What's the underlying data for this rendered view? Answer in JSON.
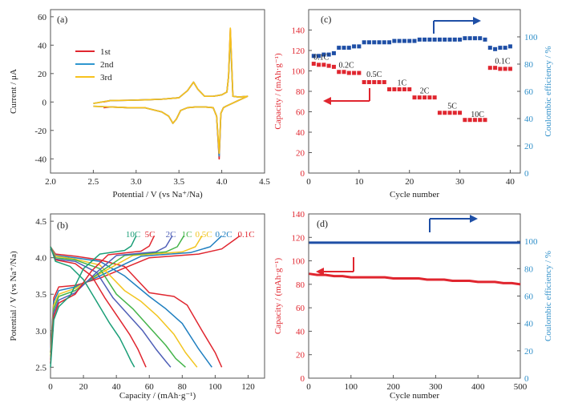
{
  "chart_data": [
    {
      "panel": "(a)",
      "type": "line",
      "xlabel": "Potential / V (vs Na⁺/Na)",
      "ylabel": "Current / μA",
      "xlim": [
        2.0,
        4.5
      ],
      "ylim": [
        -50,
        65
      ],
      "xticks": [
        2.0,
        2.5,
        3.0,
        3.5,
        4.0,
        4.5
      ],
      "yticks": [
        -40,
        -20,
        0,
        20,
        40,
        60
      ],
      "legend_position": "upper-left",
      "colors": {
        "1st": "#e0262f",
        "2nd": "#2f97cf",
        "3rd": "#f7c21d"
      },
      "series": [
        {
          "name": "1st",
          "x": [
            2.62,
            2.7,
            2.9,
            3.1,
            3.3,
            3.38,
            3.43,
            3.47,
            3.52,
            3.6,
            3.7,
            3.8,
            3.9,
            3.94,
            3.97,
            3.99,
            4.02,
            4.05,
            4.3,
            4.2,
            4.13,
            4.1,
            4.08,
            4.06,
            4.0,
            3.9,
            3.8,
            3.72,
            3.67,
            3.6,
            3.5,
            3.3,
            3.1,
            2.9,
            2.7,
            2.62
          ],
          "y": [
            -4,
            -3.5,
            -4,
            -4,
            -7,
            -10,
            -15,
            -12,
            -6,
            -4,
            -3.5,
            -3.5,
            -4,
            -10,
            -40,
            -8,
            -4,
            -3,
            4,
            3.5,
            4,
            51,
            18,
            7,
            5,
            4,
            4,
            9,
            14,
            8,
            3,
            2,
            1.5,
            1.2,
            1,
            0
          ]
        },
        {
          "name": "2nd",
          "x": [
            2.5,
            2.7,
            2.9,
            3.1,
            3.3,
            3.38,
            3.43,
            3.47,
            3.52,
            3.6,
            3.7,
            3.8,
            3.9,
            3.94,
            3.97,
            3.99,
            4.02,
            4.05,
            4.3,
            4.2,
            4.13,
            4.1,
            4.08,
            4.06,
            4.0,
            3.9,
            3.8,
            3.72,
            3.67,
            3.6,
            3.5,
            3.3,
            3.1,
            2.9,
            2.7,
            2.5
          ],
          "y": [
            -3,
            -3.5,
            -4,
            -4,
            -7,
            -10,
            -15,
            -12,
            -6,
            -4,
            -3.5,
            -3.5,
            -4,
            -10,
            -38,
            -8,
            -4,
            -3,
            4,
            3.5,
            4,
            48,
            18,
            7,
            5,
            4,
            4,
            9,
            14,
            8,
            3,
            2,
            1.5,
            1.2,
            1,
            -1
          ]
        },
        {
          "name": "3rd",
          "x": [
            2.5,
            2.7,
            2.9,
            3.1,
            3.3,
            3.38,
            3.43,
            3.47,
            3.52,
            3.6,
            3.7,
            3.8,
            3.9,
            3.94,
            3.97,
            3.99,
            4.02,
            4.05,
            4.3,
            4.2,
            4.13,
            4.1,
            4.08,
            4.06,
            4.0,
            3.9,
            3.8,
            3.72,
            3.67,
            3.6,
            3.5,
            3.3,
            3.1,
            2.9,
            2.7,
            2.5
          ],
          "y": [
            -3,
            -3.5,
            -4,
            -4,
            -7,
            -10,
            -15,
            -12,
            -6,
            -4,
            -3.5,
            -3.5,
            -4,
            -10,
            -36,
            -8,
            -4,
            -3,
            4,
            3.5,
            4,
            52,
            18,
            7,
            5,
            4,
            4,
            9,
            14,
            8,
            3,
            2,
            1.5,
            1.2,
            1,
            -1
          ]
        }
      ]
    },
    {
      "panel": "(b)",
      "type": "line",
      "xlabel": "Capacity / (mAh·g⁻¹)",
      "ylabel": "Potential / V (vs Na⁺/Na)",
      "xlim": [
        0,
        130
      ],
      "ylim": [
        2.35,
        4.6
      ],
      "xticks": [
        0,
        20,
        40,
        60,
        80,
        100,
        120
      ],
      "yticks": [
        2.5,
        3.0,
        3.5,
        4.0,
        4.5
      ],
      "labels": [
        "10C",
        "5C",
        "2C",
        "1C",
        "0.5C",
        "0.2C",
        "0.1C"
      ],
      "colors": {
        "10C": "#1a9e77",
        "5C": "#e0262f",
        "2C": "#4f5fb7",
        "1C": "#44b44a",
        "0.5C": "#f2c520",
        "0.2C": "#1f7fc0",
        "0.1C": "#e0262f"
      },
      "series": [
        {
          "name": "0.1C",
          "charge": {
            "x": [
              0,
              2,
              5,
              15,
              30,
              60,
              90,
              104,
              112,
              115
            ],
            "y": [
              2.7,
              3.45,
              3.6,
              3.62,
              3.72,
              4.0,
              4.05,
              4.12,
              4.25,
              4.3
            ]
          },
          "discharge": {
            "x": [
              0,
              3,
              15,
              30,
              45,
              60,
              75,
              83,
              92,
              100,
              104
            ],
            "y": [
              4.15,
              4.05,
              4.02,
              3.97,
              3.88,
              3.52,
              3.47,
              3.35,
              3.0,
              2.7,
              2.5
            ]
          }
        },
        {
          "name": "0.2C",
          "charge": {
            "x": [
              0,
              2,
              5,
              15,
              30,
              55,
              85,
              97,
              104
            ],
            "y": [
              2.7,
              3.4,
              3.55,
              3.6,
              3.75,
              4.02,
              4.07,
              4.15,
              4.3
            ]
          },
          "discharge": {
            "x": [
              0,
              3,
              15,
              30,
              45,
              60,
              70,
              80,
              90,
              98
            ],
            "y": [
              4.15,
              4.03,
              4.0,
              3.95,
              3.75,
              3.47,
              3.3,
              3.1,
              2.75,
              2.5
            ]
          }
        },
        {
          "name": "0.5C",
          "charge": {
            "x": [
              0,
              2,
              5,
              15,
              30,
              50,
              80,
              88,
              92
            ],
            "y": [
              2.65,
              3.35,
              3.5,
              3.58,
              3.78,
              4.03,
              4.08,
              4.15,
              4.3
            ]
          },
          "discharge": {
            "x": [
              0,
              3,
              15,
              30,
              45,
              55,
              65,
              75,
              82,
              89
            ],
            "y": [
              4.15,
              4.02,
              3.98,
              3.9,
              3.55,
              3.4,
              3.2,
              2.95,
              2.7,
              2.5
            ]
          }
        },
        {
          "name": "1C",
          "charge": {
            "x": [
              0,
              2,
              5,
              15,
              30,
              45,
              70,
              77,
              81
            ],
            "y": [
              2.6,
              3.3,
              3.47,
              3.55,
              3.8,
              4.03,
              4.08,
              4.15,
              4.3
            ]
          },
          "discharge": {
            "x": [
              0,
              3,
              15,
              30,
              40,
              50,
              60,
              70,
              76,
              82
            ],
            "y": [
              4.15,
              4.0,
              3.97,
              3.85,
              3.5,
              3.3,
              3.05,
              2.8,
              2.62,
              2.5
            ]
          }
        },
        {
          "name": "2C",
          "charge": {
            "x": [
              0,
              2,
              5,
              15,
              28,
              40,
              64,
              70,
              74
            ],
            "y": [
              2.55,
              3.25,
              3.42,
              3.52,
              3.8,
              4.03,
              4.08,
              4.15,
              4.3
            ]
          },
          "discharge": {
            "x": [
              0,
              3,
              15,
              28,
              38,
              48,
              56,
              64,
              70,
              73
            ],
            "y": [
              4.15,
              3.98,
              3.95,
              3.8,
              3.45,
              3.2,
              3.0,
              2.75,
              2.58,
              2.5
            ]
          }
        },
        {
          "name": "5C",
          "charge": {
            "x": [
              0,
              2,
              5,
              15,
              25,
              35,
              55,
              60,
              63
            ],
            "y": [
              2.55,
              3.2,
              3.38,
              3.5,
              3.82,
              4.04,
              4.09,
              4.16,
              4.3
            ]
          },
          "discharge": {
            "x": [
              0,
              3,
              15,
              25,
              33,
              42,
              48,
              53,
              56,
              58
            ],
            "y": [
              4.15,
              3.97,
              3.92,
              3.75,
              3.45,
              3.15,
              2.95,
              2.75,
              2.6,
              2.5
            ]
          }
        },
        {
          "name": "10C",
          "charge": {
            "x": [
              0,
              2,
              5,
              12,
              20,
              30,
              45,
              49,
              52
            ],
            "y": [
              2.5,
              3.15,
              3.33,
              3.48,
              3.85,
              4.05,
              4.1,
              4.16,
              4.3
            ]
          },
          "discharge": {
            "x": [
              0,
              3,
              12,
              20,
              28,
              36,
              42,
              46,
              49,
              51
            ],
            "y": [
              4.15,
              3.95,
              3.88,
              3.7,
              3.4,
              3.1,
              2.9,
              2.72,
              2.58,
              2.5
            ]
          }
        }
      ]
    },
    {
      "panel": "(c)",
      "type": "scatter",
      "xlabel": "Cycle number",
      "ylabel_left": "Capacity / (mAh·g⁻¹)",
      "ylabel_right": "Coulombic efficiency / %",
      "xlim": [
        0,
        42
      ],
      "ylim_left": [
        0,
        160
      ],
      "ylim_right": [
        0,
        120
      ],
      "xticks": [
        0,
        10,
        20,
        30,
        40
      ],
      "yticks_left": [
        0,
        20,
        40,
        60,
        80,
        100,
        120,
        140
      ],
      "yticks_right": [
        0,
        20,
        40,
        60,
        80,
        100
      ],
      "rate_labels": [
        {
          "text": "0.1C",
          "x": 2.5,
          "y": 111
        },
        {
          "text": "0.2C",
          "x": 7.5,
          "y": 103
        },
        {
          "text": "0.5C",
          "x": 13,
          "y": 94
        },
        {
          "text": "1C",
          "x": 18.5,
          "y": 86
        },
        {
          "text": "2C",
          "x": 23,
          "y": 78
        },
        {
          "text": "5C",
          "x": 28.5,
          "y": 63
        },
        {
          "text": "10C",
          "x": 33.5,
          "y": 55
        },
        {
          "text": "0.1C",
          "x": 38.5,
          "y": 107
        }
      ],
      "capacity": {
        "color": "#e0262f",
        "x": [
          1,
          2,
          3,
          4,
          5,
          6,
          7,
          8,
          9,
          10,
          11,
          12,
          13,
          14,
          15,
          16,
          17,
          18,
          19,
          20,
          21,
          22,
          23,
          24,
          25,
          26,
          27,
          28,
          29,
          30,
          31,
          32,
          33,
          34,
          35,
          36,
          37,
          38,
          39,
          40
        ],
        "y": [
          107,
          106,
          106,
          105,
          104,
          99,
          99,
          98,
          98,
          98,
          89,
          89,
          89,
          89,
          89,
          82,
          82,
          82,
          82,
          82,
          74,
          74,
          74,
          74,
          74,
          59,
          59,
          59,
          59,
          59,
          52,
          52,
          52,
          52,
          52,
          103,
          103,
          102,
          102,
          102
        ]
      },
      "efficiency": {
        "color": "#1f4fa6",
        "x": [
          1,
          2,
          3,
          4,
          5,
          6,
          7,
          8,
          9,
          10,
          11,
          12,
          13,
          14,
          15,
          16,
          17,
          18,
          19,
          20,
          21,
          22,
          23,
          24,
          25,
          26,
          27,
          28,
          29,
          30,
          31,
          32,
          33,
          34,
          35,
          36,
          37,
          38,
          39,
          40
        ],
        "y": [
          86,
          86,
          87,
          87,
          88,
          92,
          92,
          92,
          93,
          93,
          96,
          96,
          96,
          96,
          96,
          96,
          97,
          97,
          97,
          97,
          97,
          98,
          98,
          98,
          98,
          98,
          98,
          98,
          98,
          98,
          99,
          99,
          99,
          99,
          98,
          92,
          91,
          92,
          92,
          93
        ]
      }
    },
    {
      "panel": "(d)",
      "type": "scatter",
      "xlabel": "Cycle number",
      "ylabel_left": "Capacity / (mAh·g⁻¹)",
      "ylabel_right": "Coulombic efficiency / %",
      "xlim": [
        0,
        500
      ],
      "ylim_left": [
        0,
        140
      ],
      "ylim_right": [
        0,
        120
      ],
      "xticks": [
        0,
        100,
        200,
        300,
        400,
        500
      ],
      "yticks_left": [
        0,
        20,
        40,
        60,
        80,
        100,
        120,
        140
      ],
      "yticks_right": [
        0,
        20,
        40,
        60,
        80,
        100
      ],
      "capacity": {
        "color": "#e0262f",
        "x": [
          1,
          20,
          40,
          60,
          80,
          100,
          120,
          140,
          160,
          180,
          200,
          220,
          240,
          260,
          280,
          300,
          320,
          340,
          360,
          380,
          400,
          420,
          440,
          460,
          480,
          500
        ],
        "y": [
          89,
          88,
          88,
          87,
          87,
          86,
          86,
          86,
          86,
          86,
          85,
          85,
          85,
          85,
          84,
          84,
          84,
          83,
          83,
          83,
          82,
          82,
          82,
          81,
          81,
          80
        ]
      },
      "efficiency": {
        "color": "#1f4fa6",
        "x": [
          1,
          20,
          40,
          60,
          80,
          100,
          120,
          140,
          160,
          180,
          200,
          220,
          240,
          260,
          280,
          300,
          320,
          340,
          360,
          380,
          400,
          420,
          440,
          460,
          480,
          500
        ],
        "y": [
          99,
          99,
          99,
          99,
          99,
          99,
          99,
          99,
          99,
          99,
          99,
          99,
          99,
          99,
          99,
          99,
          99,
          99,
          99,
          99,
          99,
          99,
          99,
          99,
          99,
          99
        ]
      }
    }
  ]
}
